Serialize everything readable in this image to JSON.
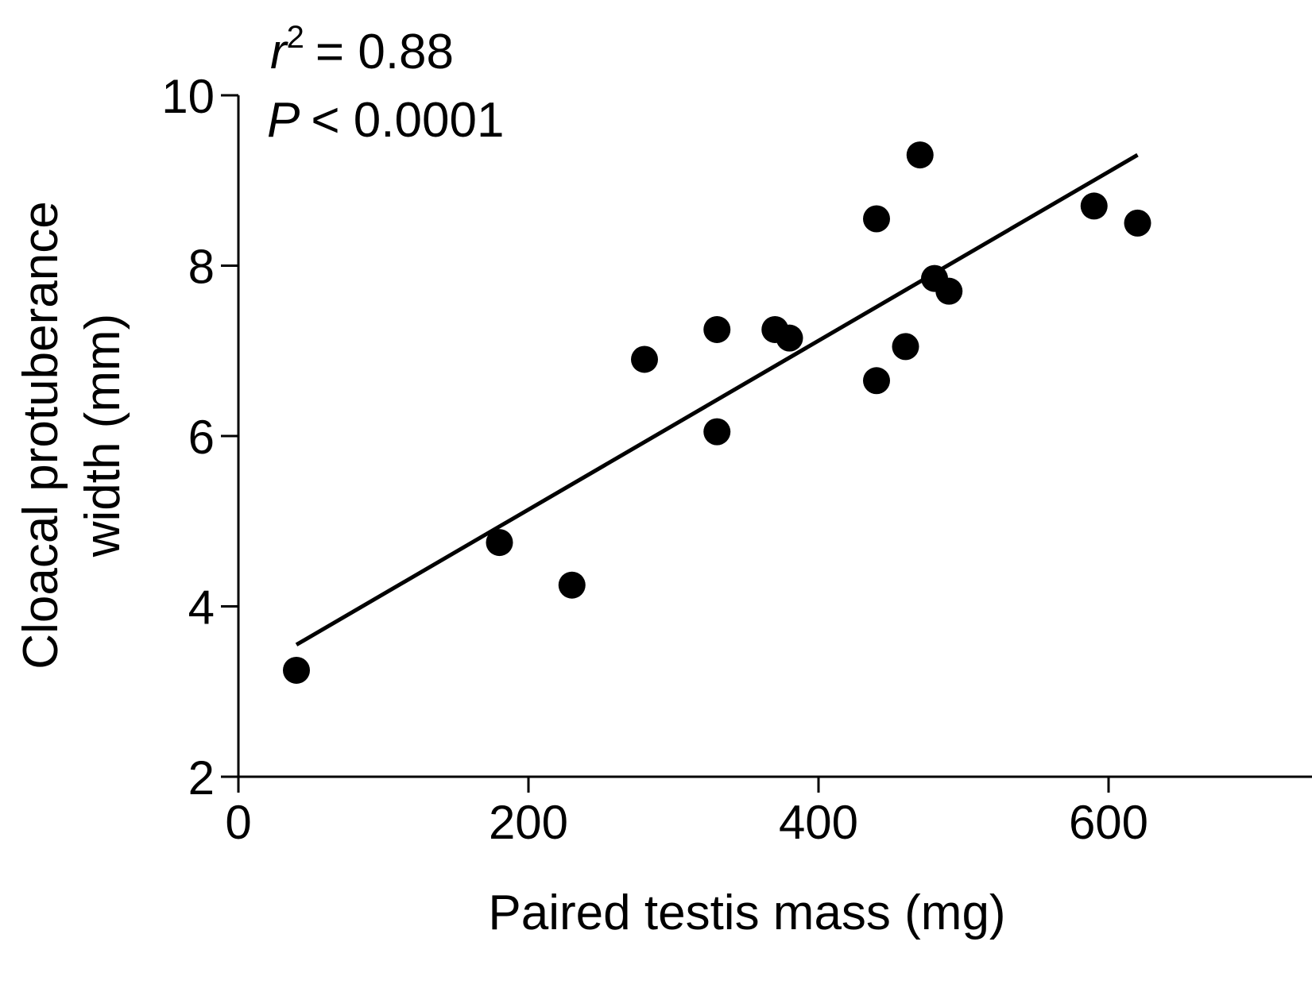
{
  "chart_data": {
    "type": "scatter",
    "title": "",
    "xlabel": "Paired testis mass (mg)",
    "ylabel_lines": [
      "Cloacal protuberance",
      "width (mm)"
    ],
    "xlim": [
      0,
      700
    ],
    "ylim": [
      2,
      10
    ],
    "xticks": [
      0,
      200,
      400,
      600
    ],
    "yticks": [
      2,
      4,
      6,
      8,
      10
    ],
    "xtick_labels": [
      "0",
      "200",
      "400",
      "600"
    ],
    "ytick_labels": [
      "2",
      "4",
      "6",
      "8",
      "10"
    ],
    "grid": false,
    "points": [
      {
        "x": 40,
        "y": 3.25
      },
      {
        "x": 180,
        "y": 4.75
      },
      {
        "x": 230,
        "y": 4.25
      },
      {
        "x": 280,
        "y": 6.9
      },
      {
        "x": 330,
        "y": 7.25
      },
      {
        "x": 330,
        "y": 6.05
      },
      {
        "x": 370,
        "y": 7.25
      },
      {
        "x": 380,
        "y": 7.15
      },
      {
        "x": 440,
        "y": 8.55
      },
      {
        "x": 440,
        "y": 6.65
      },
      {
        "x": 460,
        "y": 7.05
      },
      {
        "x": 470,
        "y": 9.3
      },
      {
        "x": 480,
        "y": 7.85
      },
      {
        "x": 490,
        "y": 7.7
      },
      {
        "x": 590,
        "y": 8.7
      },
      {
        "x": 620,
        "y": 8.5
      }
    ],
    "fit_line": {
      "x": [
        40,
        620
      ],
      "y": [
        3.55,
        9.3
      ]
    },
    "annotations": {
      "r2_symbol": "r",
      "r2_exponent": "2",
      "r2_value": "= 0.88",
      "p_symbol": "P",
      "p_value": "< 0.0001"
    },
    "colors": {
      "points": "#000000",
      "line": "#000000",
      "axis": "#000000"
    }
  }
}
